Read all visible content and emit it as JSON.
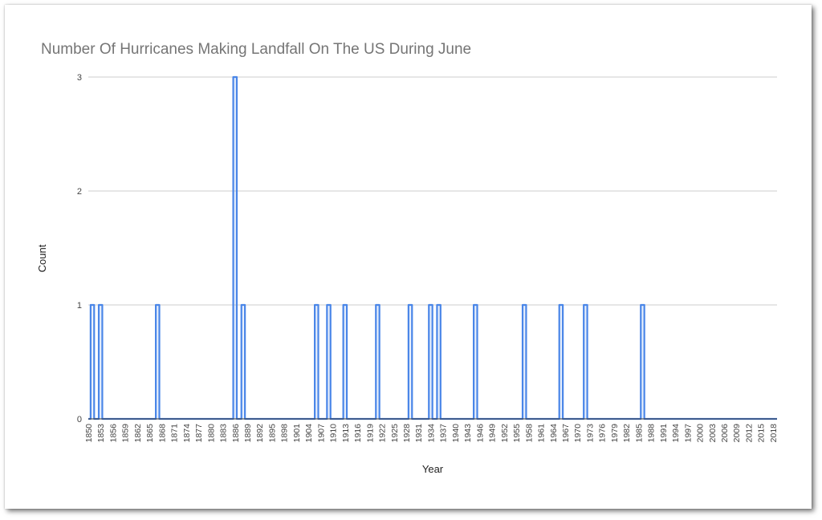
{
  "chart_data": {
    "type": "area",
    "title": "Number Of Hurricanes Making Landfall On The US During June",
    "xlabel": "Year",
    "ylabel": "Count",
    "ylim": [
      0,
      3
    ],
    "yticks": [
      "0",
      "1",
      "2",
      "3"
    ],
    "grid": true,
    "legend": "none",
    "x_start": 1850,
    "x_end": 2019,
    "xtick_labels": [
      "1850",
      "1853",
      "1856",
      "1859",
      "1862",
      "1865",
      "1868",
      "1871",
      "1874",
      "1877",
      "1880",
      "1883",
      "1886",
      "1889",
      "1892",
      "1895",
      "1898",
      "1901",
      "1904",
      "1907",
      "1910",
      "1913",
      "1916",
      "1919",
      "1922",
      "1925",
      "1928",
      "1931",
      "1934",
      "1937",
      "1940",
      "1943",
      "1946",
      "1949",
      "1952",
      "1955",
      "1958",
      "1961",
      "1964",
      "1967",
      "1970",
      "1973",
      "1976",
      "1979",
      "1982",
      "1985",
      "1988",
      "1991",
      "1994",
      "1997",
      "2000",
      "2003",
      "2006",
      "2009",
      "2012",
      "2015",
      "2018"
    ],
    "nonzero": [
      {
        "year": 1851,
        "count": 1
      },
      {
        "year": 1853,
        "count": 1
      },
      {
        "year": 1867,
        "count": 1
      },
      {
        "year": 1886,
        "count": 3
      },
      {
        "year": 1888,
        "count": 1
      },
      {
        "year": 1906,
        "count": 1
      },
      {
        "year": 1909,
        "count": 1
      },
      {
        "year": 1913,
        "count": 1
      },
      {
        "year": 1921,
        "count": 1
      },
      {
        "year": 1929,
        "count": 1
      },
      {
        "year": 1934,
        "count": 1
      },
      {
        "year": 1936,
        "count": 1
      },
      {
        "year": 1945,
        "count": 1
      },
      {
        "year": 1957,
        "count": 1
      },
      {
        "year": 1966,
        "count": 1
      },
      {
        "year": 1972,
        "count": 1
      },
      {
        "year": 1986,
        "count": 1
      }
    ],
    "color": "#4a86e8"
  }
}
